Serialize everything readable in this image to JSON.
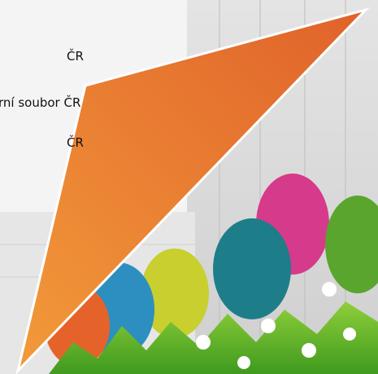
{
  "lines": [
    "ČR",
    "rní soubor ČR",
    "ČR"
  ]
}
